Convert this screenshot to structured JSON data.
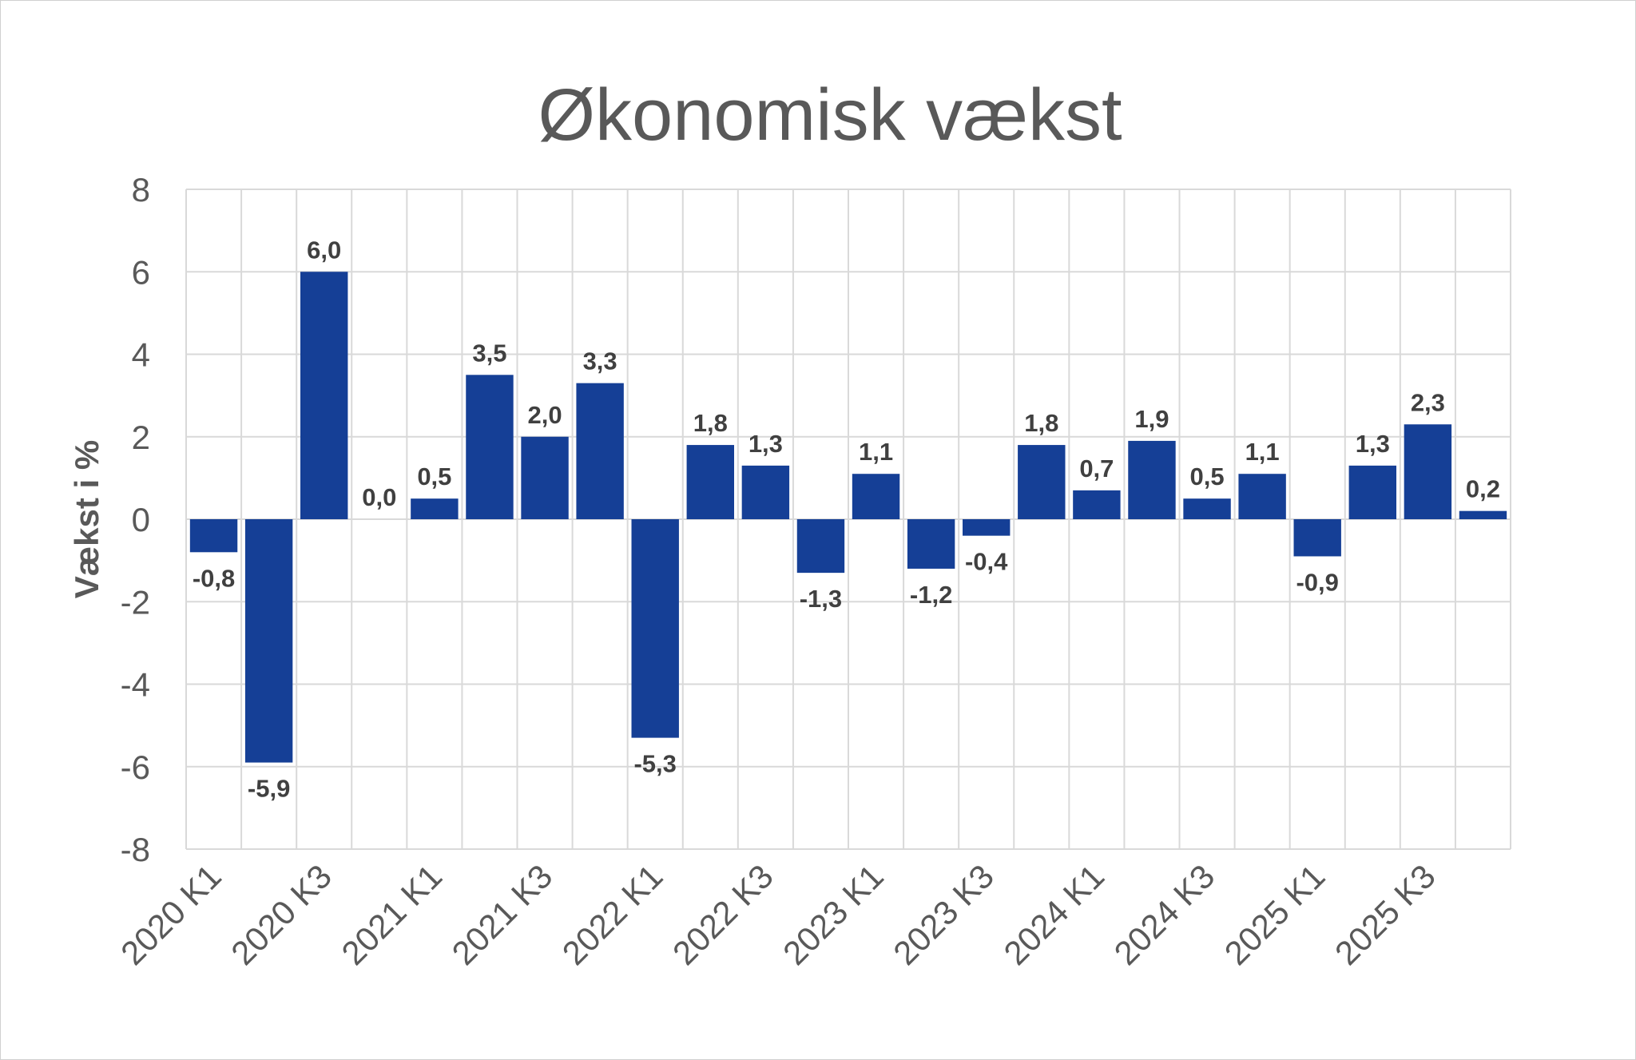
{
  "chart_data": {
    "type": "bar",
    "title": "Økonomisk vækst",
    "ylabel": "Vækst i %",
    "xlabel": "",
    "ylim": [
      -8,
      8
    ],
    "yticks": [
      8,
      6,
      4,
      2,
      0,
      -2,
      -4,
      -6,
      -8
    ],
    "grid": true,
    "legend": "none",
    "bar_color": "#153f96",
    "categories": [
      "2020 K1",
      "2020 K2",
      "2020 K3",
      "2020 K4",
      "2021 K1",
      "2021 K2",
      "2021 K3",
      "2021 K4",
      "2022 K1",
      "2022 K2",
      "2022 K3",
      "2022 K4",
      "2023 K1",
      "2023 K2",
      "2023 K3",
      "2023 K4",
      "2024 K1",
      "2024 K2",
      "2024 K3",
      "2024 K4",
      "2025 K1",
      "2025 K2",
      "2025 K3",
      "2025 K4"
    ],
    "shown_xtick_labels": [
      "2020 K1",
      "2020 K3",
      "2021 K1",
      "2021 K3",
      "2022 K1",
      "2022 K3",
      "2023 K1",
      "2023 K3",
      "2024 K1",
      "2024 K3",
      "2025 K1",
      "2025 K3"
    ],
    "values": [
      -0.8,
      -5.9,
      6.0,
      0.0,
      0.5,
      3.5,
      2.0,
      3.3,
      -5.3,
      1.8,
      1.3,
      -1.3,
      1.1,
      -1.2,
      -0.4,
      1.8,
      0.7,
      1.9,
      0.5,
      1.1,
      -0.9,
      1.3,
      2.3,
      0.2
    ],
    "data_labels": [
      "-0,8",
      "-5,9",
      "6,0",
      "0,0",
      "0,5",
      "3,5",
      "2,0",
      "3,3",
      "-5,3",
      "1,8",
      "1,3",
      "-1,3",
      "1,1",
      "-1,2",
      "-0,4",
      "1,8",
      "0,7",
      "1,9",
      "0,5",
      "1,1",
      "-0,9",
      "1,3",
      "2,3",
      "0,2"
    ]
  }
}
